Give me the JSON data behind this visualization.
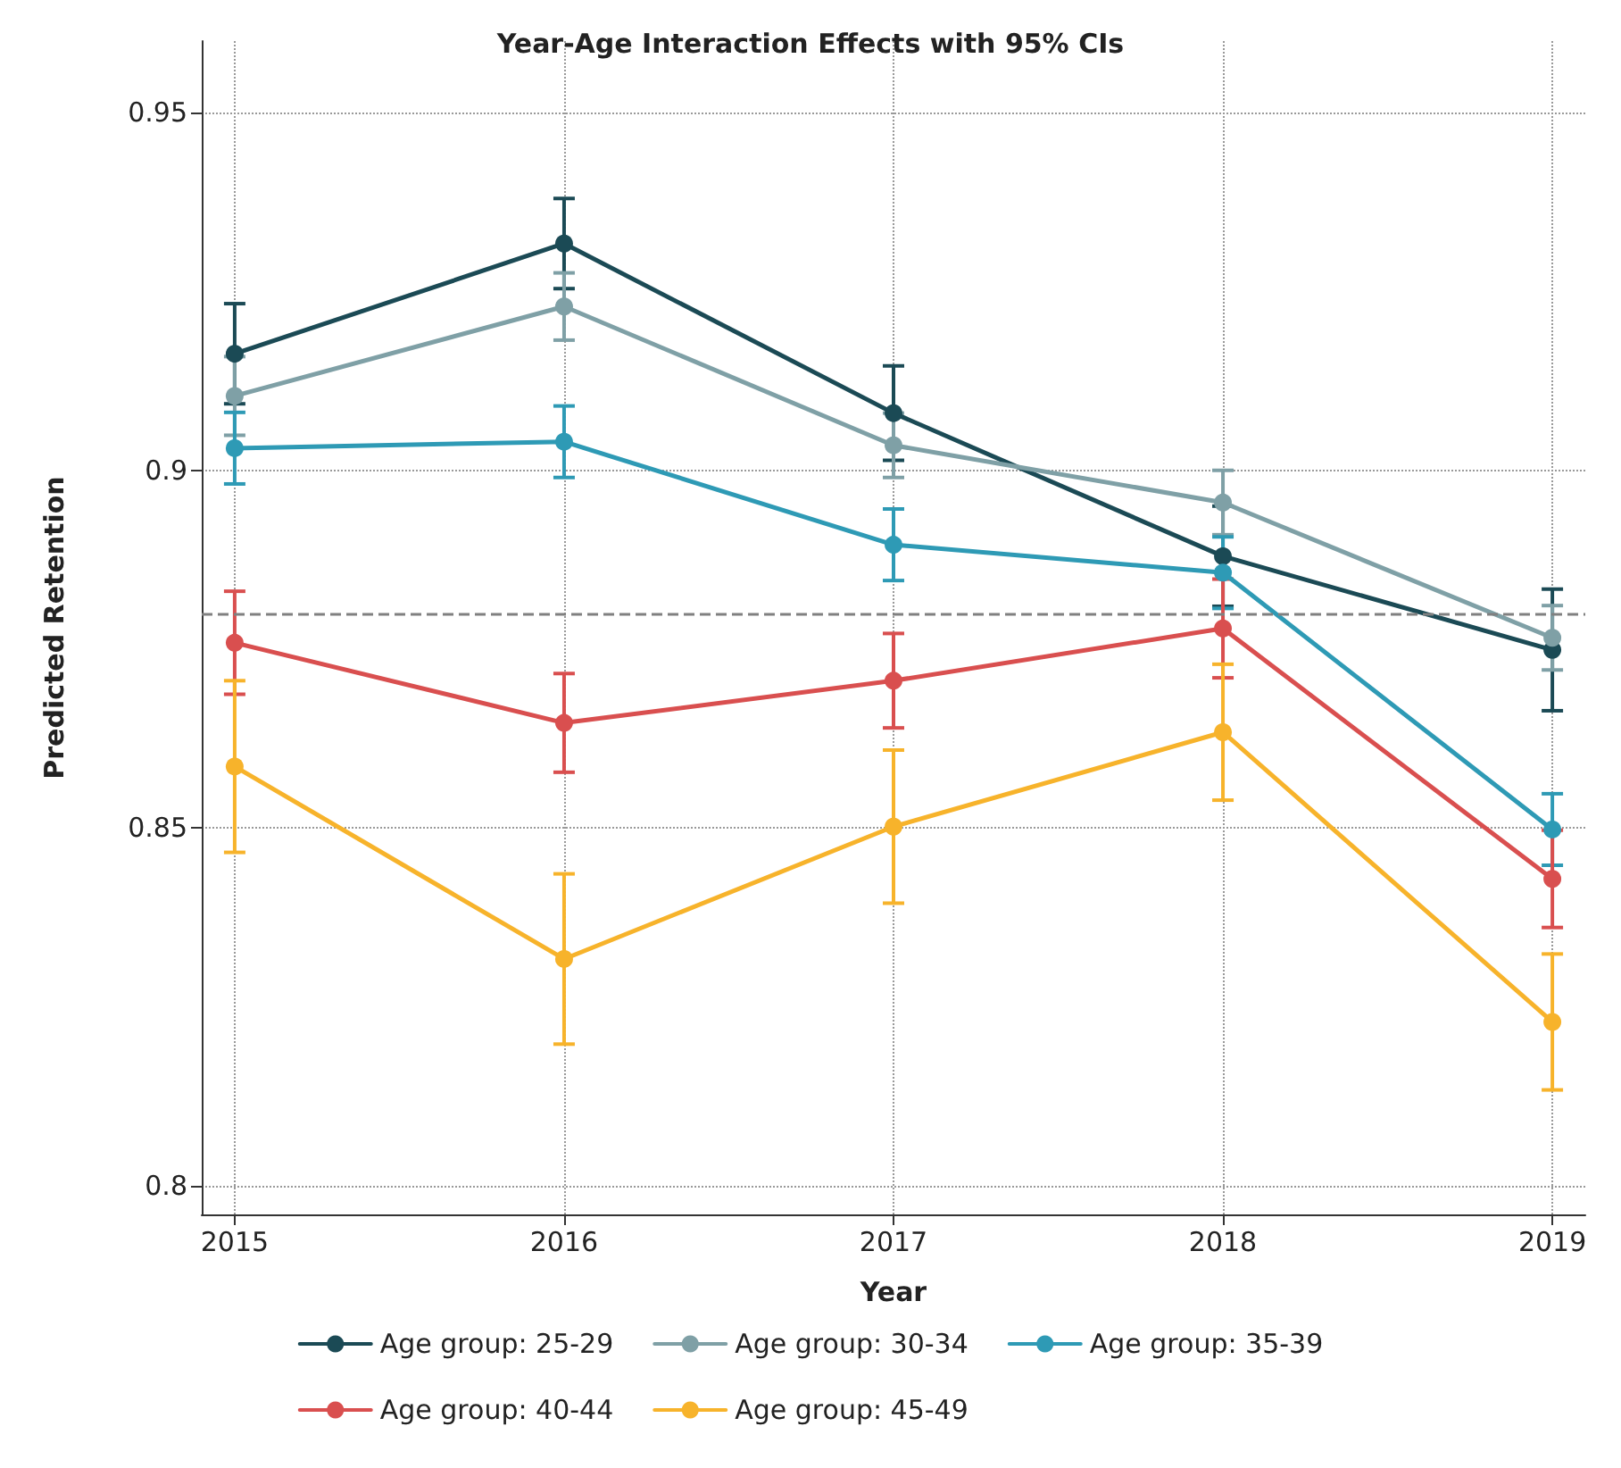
{
  "chart_data": {
    "type": "line",
    "title": "Year-Age Interaction Effects with 95% CIs",
    "xlabel": "Year",
    "ylabel": "Predicted Retention",
    "x": [
      2015,
      2016,
      2017,
      2018,
      2019
    ],
    "xlim": [
      2014.9,
      2019.1
    ],
    "xticks": [
      2015,
      2016,
      2017,
      2018,
      2019
    ],
    "ylim": [
      0.796,
      0.96
    ],
    "yticks": [
      0.8,
      0.85,
      0.9,
      0.95
    ],
    "grid": true,
    "legend": "bottom",
    "marker": "circle",
    "line_style": "solid",
    "ref_lines": [
      {
        "axis": "y",
        "value": 0.88,
        "color": "#808080",
        "line_style": "dashed"
      }
    ],
    "series": [
      {
        "name": "Age group: 25-29",
        "color": "#1b4a55",
        "values": [
          0.9163,
          0.9317,
          0.908,
          0.888,
          0.8749
        ],
        "errors": [
          0.007,
          0.0063,
          0.0066,
          0.007,
          0.0085
        ]
      },
      {
        "name": "Age group: 30-34",
        "color": "#7fa0a6",
        "values": [
          0.9104,
          0.9229,
          0.9035,
          0.8955,
          0.8766
        ],
        "errors": [
          0.0055,
          0.0047,
          0.0045,
          0.0045,
          0.0045
        ]
      },
      {
        "name": "Age group: 35-39",
        "color": "#2e9ab5",
        "values": [
          0.9031,
          0.904,
          0.8896,
          0.8857,
          0.8498
        ],
        "errors": [
          0.005,
          0.005,
          0.005,
          0.005,
          0.005
        ]
      },
      {
        "name": "Age group: 40-44",
        "color": "#d94f4f",
        "values": [
          0.8759,
          0.8647,
          0.8706,
          0.8779,
          0.8429
        ],
        "errors": [
          0.0072,
          0.0069,
          0.0066,
          0.0069,
          0.0068
        ]
      },
      {
        "name": "Age group: 45-49",
        "color": "#f7b32b",
        "values": [
          0.8586,
          0.8317,
          0.8502,
          0.8634,
          0.8229
        ],
        "errors": [
          0.012,
          0.0119,
          0.0107,
          0.0095,
          0.0095
        ]
      }
    ]
  }
}
